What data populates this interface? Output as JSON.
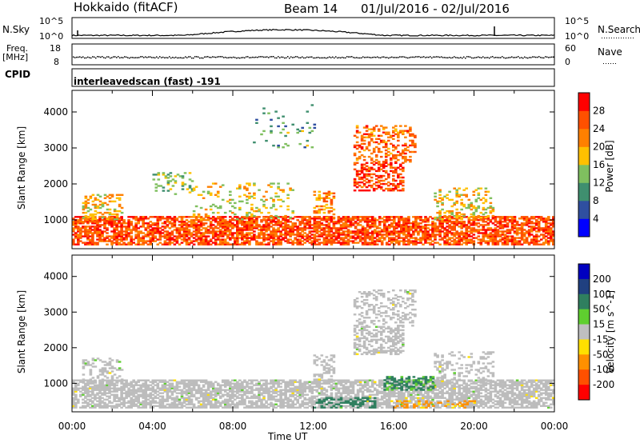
{
  "header": {
    "title": "Hokkaido (fitACF)",
    "beam": "Beam 14",
    "dates": "01/Jul/2016 - 02/Jul/2016"
  },
  "panels": {
    "nsky": {
      "label": "N.Sky",
      "right_label": "N.Search",
      "ticks_left": [
        "10^5",
        "10^0"
      ],
      "ticks_right": [
        "10^5",
        "10^0"
      ]
    },
    "freq": {
      "label_1": "Freq.",
      "label_2": "[MHz]",
      "right_label": "Nave",
      "ticks_left": [
        "18",
        "8"
      ],
      "ticks_right": [
        "60",
        "0"
      ]
    },
    "cpid": {
      "label": "CPID",
      "text": "interleavedscan (fast) -191"
    }
  },
  "colors": {
    "power_scale": [
      "#0000ff",
      "#2f4fa0",
      "#3f8f6f",
      "#7fbf5f",
      "#ffc000",
      "#ff8000",
      "#ff5000",
      "#ff0000"
    ],
    "velocity_scale": [
      "#0000c0",
      "#204080",
      "#2f7f5f",
      "#5fcf2f",
      "#bfbfbf",
      "#ffe000",
      "#ff9000",
      "#ff5000",
      "#ff0000"
    ],
    "ground_scatter": "#bcbcbc"
  },
  "chart_data": [
    {
      "type": "heatmap",
      "title": "",
      "xlabel": "Time UT",
      "ylabel": "Slant Range [km]",
      "x_ticks": [
        "00:00",
        "04:00",
        "08:00",
        "12:00",
        "16:00",
        "20:00",
        "00:00"
      ],
      "y_ticks": [
        1000,
        2000,
        3000,
        4000
      ],
      "xlim_hours": [
        0,
        24
      ],
      "ylim_km": [
        200,
        4600
      ],
      "colorbar": {
        "label": "Power [dB]",
        "ticks": [
          4,
          8,
          12,
          16,
          20,
          24,
          28
        ],
        "range": [
          0,
          32
        ]
      },
      "echo_regions": [
        {
          "t": [
            0,
            24
          ],
          "km": [
            300,
            1100
          ],
          "value": 26,
          "density": 0.7
        },
        {
          "t": [
            0.5,
            2.5
          ],
          "km": [
            1000,
            1700
          ],
          "value": 19,
          "density": 0.35
        },
        {
          "t": [
            4,
            6
          ],
          "km": [
            1700,
            2300
          ],
          "value": 13,
          "density": 0.2
        },
        {
          "t": [
            6,
            11
          ],
          "km": [
            1000,
            2000
          ],
          "value": 17,
          "density": 0.15
        },
        {
          "t": [
            12,
            13
          ],
          "km": [
            1000,
            1800
          ],
          "value": 21,
          "density": 0.35
        },
        {
          "t": [
            14,
            17
          ],
          "km": [
            2600,
            3600
          ],
          "value": 24,
          "density": 0.35
        },
        {
          "t": [
            14,
            16.5
          ],
          "km": [
            1800,
            2600
          ],
          "value": 27,
          "density": 0.5
        },
        {
          "t": [
            18,
            21
          ],
          "km": [
            1000,
            1900
          ],
          "value": 18,
          "density": 0.3
        },
        {
          "t": [
            9,
            12
          ],
          "km": [
            3000,
            4200
          ],
          "value": 12,
          "density": 0.05
        }
      ]
    },
    {
      "type": "heatmap",
      "title": "",
      "xlabel": "Time UT",
      "ylabel": "Slant Range [km]",
      "x_ticks": [
        "00:00",
        "04:00",
        "08:00",
        "12:00",
        "16:00",
        "20:00",
        "00:00"
      ],
      "y_ticks": [
        1000,
        2000,
        3000,
        4000
      ],
      "xlim_hours": [
        0,
        24
      ],
      "ylim_km": [
        200,
        4600
      ],
      "colorbar": {
        "label": "Velocity [m s^-1]",
        "ticks": [
          200,
          100,
          50,
          15,
          -15,
          -50,
          -100,
          -200
        ]
      },
      "echo_regions": [
        {
          "t": [
            0,
            24
          ],
          "km": [
            300,
            1100
          ],
          "value": 0,
          "density": 0.7
        },
        {
          "t": [
            0.5,
            2.5
          ],
          "km": [
            1000,
            1700
          ],
          "value": 0,
          "density": 0.35
        },
        {
          "t": [
            12,
            13
          ],
          "km": [
            1000,
            1800
          ],
          "value": 0,
          "density": 0.35
        },
        {
          "t": [
            14,
            17
          ],
          "km": [
            2600,
            3600
          ],
          "value": 0,
          "density": 0.3
        },
        {
          "t": [
            14,
            16.5
          ],
          "km": [
            1800,
            2600
          ],
          "value": 0,
          "density": 0.5
        },
        {
          "t": [
            15.5,
            18
          ],
          "km": [
            800,
            1200
          ],
          "value": 60,
          "density": 0.5
        },
        {
          "t": [
            12,
            15
          ],
          "km": [
            300,
            600
          ],
          "value": 70,
          "density": 0.4
        },
        {
          "t": [
            16,
            20
          ],
          "km": [
            300,
            500
          ],
          "value": -60,
          "density": 0.35
        },
        {
          "t": [
            18,
            21
          ],
          "km": [
            1000,
            1900
          ],
          "value": 0,
          "density": 0.3
        }
      ]
    }
  ]
}
